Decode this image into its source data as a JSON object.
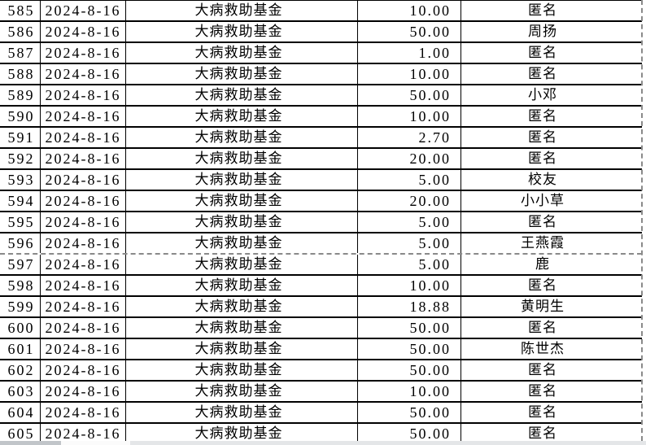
{
  "colors": {
    "border": "#000000",
    "page_break_dash": "#8a8a8a",
    "strip_left": "#c1c5c9",
    "strip_gap": "#fbfbfb",
    "strip_right": "#e4e6e8"
  },
  "table": {
    "columns": [
      "row-number",
      "date",
      "fund-name",
      "amount",
      "donor-name"
    ],
    "rows": [
      {
        "no": "585",
        "date": "2024-8-16",
        "fund": "大病救助基金",
        "amount": "10.00",
        "name": "匿名"
      },
      {
        "no": "586",
        "date": "2024-8-16",
        "fund": "大病救助基金",
        "amount": "50.00",
        "name": "周扬"
      },
      {
        "no": "587",
        "date": "2024-8-16",
        "fund": "大病救助基金",
        "amount": "1.00",
        "name": "匿名"
      },
      {
        "no": "588",
        "date": "2024-8-16",
        "fund": "大病救助基金",
        "amount": "10.00",
        "name": "匿名"
      },
      {
        "no": "589",
        "date": "2024-8-16",
        "fund": "大病救助基金",
        "amount": "50.00",
        "name": "小邓"
      },
      {
        "no": "590",
        "date": "2024-8-16",
        "fund": "大病救助基金",
        "amount": "10.00",
        "name": "匿名"
      },
      {
        "no": "591",
        "date": "2024-8-16",
        "fund": "大病救助基金",
        "amount": "2.70",
        "name": "匿名"
      },
      {
        "no": "592",
        "date": "2024-8-16",
        "fund": "大病救助基金",
        "amount": "20.00",
        "name": "匿名"
      },
      {
        "no": "593",
        "date": "2024-8-16",
        "fund": "大病救助基金",
        "amount": "5.00",
        "name": "校友"
      },
      {
        "no": "594",
        "date": "2024-8-16",
        "fund": "大病救助基金",
        "amount": "20.00",
        "name": "小小草"
      },
      {
        "no": "595",
        "date": "2024-8-16",
        "fund": "大病救助基金",
        "amount": "5.00",
        "name": "匿名"
      },
      {
        "no": "596",
        "date": "2024-8-16",
        "fund": "大病救助基金",
        "amount": "5.00",
        "name": "王燕霞",
        "page_break_after": true
      },
      {
        "no": "597",
        "date": "2024-8-16",
        "fund": "大病救助基金",
        "amount": "5.00",
        "name": "鹿"
      },
      {
        "no": "598",
        "date": "2024-8-16",
        "fund": "大病救助基金",
        "amount": "10.00",
        "name": "匿名"
      },
      {
        "no": "599",
        "date": "2024-8-16",
        "fund": "大病救助基金",
        "amount": "18.88",
        "name": "黄明生"
      },
      {
        "no": "600",
        "date": "2024-8-16",
        "fund": "大病救助基金",
        "amount": "50.00",
        "name": "匿名"
      },
      {
        "no": "601",
        "date": "2024-8-16",
        "fund": "大病救助基金",
        "amount": "50.00",
        "name": "陈世杰"
      },
      {
        "no": "602",
        "date": "2024-8-16",
        "fund": "大病救助基金",
        "amount": "50.00",
        "name": "匿名"
      },
      {
        "no": "603",
        "date": "2024-8-16",
        "fund": "大病救助基金",
        "amount": "10.00",
        "name": "匿名"
      },
      {
        "no": "604",
        "date": "2024-8-16",
        "fund": "大病救助基金",
        "amount": "50.00",
        "name": "匿名"
      },
      {
        "no": "605",
        "date": "2024-8-16",
        "fund": "大病救助基金",
        "amount": "50.00",
        "name": "匿名"
      }
    ]
  }
}
